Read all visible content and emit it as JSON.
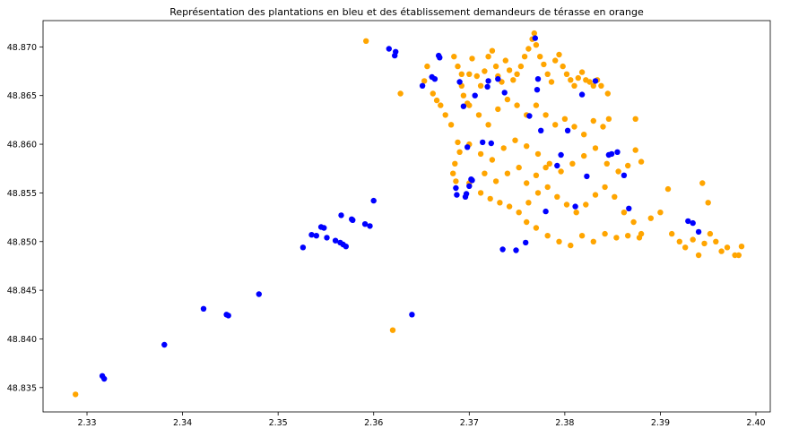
{
  "chart_data": {
    "type": "scatter",
    "title": "Représentation des plantations en bleu et des établissement demandeurs de térasse en orange",
    "xlabel": "",
    "ylabel": "",
    "xlim": [
      2.3254,
      2.4015
    ],
    "ylim": [
      48.8325,
      48.8727
    ],
    "xticks": [
      "2.33",
      "2.34",
      "2.35",
      "2.36",
      "2.37",
      "2.38",
      "2.39",
      "2.40"
    ],
    "yticks": [
      "48.835",
      "48.840",
      "48.845",
      "48.850",
      "48.855",
      "48.860",
      "48.865",
      "48.870"
    ],
    "grid": false,
    "colors": {
      "plantations": "#0000ff",
      "terrasses": "#ffa500"
    },
    "series": [
      {
        "color": "#0000ff",
        "points": [
          [
            2.3316,
            48.8362
          ],
          [
            2.3318,
            48.8359
          ],
          [
            2.3381,
            48.8394
          ],
          [
            2.3422,
            48.8431
          ],
          [
            2.3446,
            48.8425
          ],
          [
            2.3448,
            48.8424
          ],
          [
            2.348,
            48.8446
          ],
          [
            2.3526,
            48.8494
          ],
          [
            2.3535,
            48.8507
          ],
          [
            2.354,
            48.8506
          ],
          [
            2.3545,
            48.8515
          ],
          [
            2.3548,
            48.8514
          ],
          [
            2.3551,
            48.8504
          ],
          [
            2.356,
            48.8501
          ],
          [
            2.3565,
            48.8499
          ],
          [
            2.3568,
            48.8497
          ],
          [
            2.3571,
            48.8495
          ],
          [
            2.3566,
            48.8527
          ],
          [
            2.3577,
            48.8523
          ],
          [
            2.3578,
            48.8522
          ],
          [
            2.3591,
            48.8518
          ],
          [
            2.3596,
            48.8516
          ],
          [
            2.36,
            48.8542
          ],
          [
            2.3616,
            48.8698
          ],
          [
            2.3622,
            48.8691
          ],
          [
            2.3623,
            48.8695
          ],
          [
            2.364,
            48.8425
          ],
          [
            2.3651,
            48.866
          ],
          [
            2.3661,
            48.8669
          ],
          [
            2.3664,
            48.8667
          ],
          [
            2.3668,
            48.8691
          ],
          [
            2.3669,
            48.8689
          ],
          [
            2.3686,
            48.8555
          ],
          [
            2.3687,
            48.8548
          ],
          [
            2.369,
            48.8664
          ],
          [
            2.3694,
            48.8639
          ],
          [
            2.3696,
            48.8546
          ],
          [
            2.3697,
            48.8549
          ],
          [
            2.3698,
            48.8597
          ],
          [
            2.37,
            48.8557
          ],
          [
            2.3702,
            48.8564
          ],
          [
            2.3703,
            48.8563
          ],
          [
            2.3706,
            48.865
          ],
          [
            2.3714,
            48.8602
          ],
          [
            2.3719,
            48.8659
          ],
          [
            2.372,
            48.8665
          ],
          [
            2.3723,
            48.8601
          ],
          [
            2.373,
            48.8667
          ],
          [
            2.3735,
            48.8492
          ],
          [
            2.3737,
            48.8653
          ],
          [
            2.3749,
            48.8491
          ],
          [
            2.3759,
            48.8499
          ],
          [
            2.3763,
            48.8629
          ],
          [
            2.3769,
            48.8709
          ],
          [
            2.3771,
            48.8656
          ],
          [
            2.3772,
            48.8667
          ],
          [
            2.3775,
            48.8614
          ],
          [
            2.378,
            48.8531
          ],
          [
            2.3792,
            48.8578
          ],
          [
            2.3796,
            48.8589
          ],
          [
            2.3803,
            48.8614
          ],
          [
            2.3811,
            48.8536
          ],
          [
            2.3818,
            48.8651
          ],
          [
            2.3823,
            48.8567
          ],
          [
            2.3832,
            48.8665
          ],
          [
            2.3846,
            48.8589
          ],
          [
            2.3849,
            48.859
          ],
          [
            2.3855,
            48.8592
          ],
          [
            2.3862,
            48.8568
          ],
          [
            2.3867,
            48.8534
          ],
          [
            2.3929,
            48.8521
          ],
          [
            2.3934,
            48.8519
          ],
          [
            2.394,
            48.851
          ]
        ]
      },
      {
        "color": "#ffa500",
        "points": [
          [
            2.3288,
            48.8343
          ],
          [
            2.3592,
            48.8706
          ],
          [
            2.362,
            48.8409
          ],
          [
            2.3628,
            48.8652
          ],
          [
            2.3653,
            48.8665
          ],
          [
            2.3656,
            48.868
          ],
          [
            2.3662,
            48.8652
          ],
          [
            2.3666,
            48.8645
          ],
          [
            2.367,
            48.864
          ],
          [
            2.3675,
            48.863
          ],
          [
            2.3681,
            48.862
          ],
          [
            2.3684,
            48.869
          ],
          [
            2.3688,
            48.868
          ],
          [
            2.3692,
            48.8672
          ],
          [
            2.3694,
            48.865
          ],
          [
            2.3698,
            48.8642
          ],
          [
            2.3688,
            48.8602
          ],
          [
            2.369,
            48.8592
          ],
          [
            2.3685,
            48.858
          ],
          [
            2.3683,
            48.857
          ],
          [
            2.3686,
            48.8562
          ],
          [
            2.3692,
            48.866
          ],
          [
            2.37,
            48.8672
          ],
          [
            2.3703,
            48.8688
          ],
          [
            2.3708,
            48.867
          ],
          [
            2.3712,
            48.866
          ],
          [
            2.3716,
            48.8675
          ],
          [
            2.372,
            48.869
          ],
          [
            2.3724,
            48.8696
          ],
          [
            2.3728,
            48.868
          ],
          [
            2.373,
            48.867
          ],
          [
            2.3734,
            48.8664
          ],
          [
            2.3738,
            48.8686
          ],
          [
            2.3742,
            48.8676
          ],
          [
            2.3746,
            48.8666
          ],
          [
            2.375,
            48.8672
          ],
          [
            2.3754,
            48.868
          ],
          [
            2.3758,
            48.869
          ],
          [
            2.3762,
            48.8698
          ],
          [
            2.3766,
            48.8708
          ],
          [
            2.3768,
            48.8714
          ],
          [
            2.377,
            48.8702
          ],
          [
            2.3774,
            48.869
          ],
          [
            2.3778,
            48.8682
          ],
          [
            2.3782,
            48.8672
          ],
          [
            2.3786,
            48.8664
          ],
          [
            2.379,
            48.8686
          ],
          [
            2.3794,
            48.8692
          ],
          [
            2.3798,
            48.868
          ],
          [
            2.3802,
            48.8672
          ],
          [
            2.3806,
            48.8666
          ],
          [
            2.381,
            48.866
          ],
          [
            2.3814,
            48.8668
          ],
          [
            2.3818,
            48.8674
          ],
          [
            2.3822,
            48.8666
          ],
          [
            2.3826,
            48.8664
          ],
          [
            2.383,
            48.866
          ],
          [
            2.3834,
            48.8666
          ],
          [
            2.3838,
            48.866
          ],
          [
            2.3845,
            48.8652
          ],
          [
            2.37,
            48.864
          ],
          [
            2.371,
            48.863
          ],
          [
            2.372,
            48.862
          ],
          [
            2.373,
            48.8636
          ],
          [
            2.374,
            48.8646
          ],
          [
            2.375,
            48.864
          ],
          [
            2.376,
            48.863
          ],
          [
            2.377,
            48.864
          ],
          [
            2.378,
            48.863
          ],
          [
            2.379,
            48.862
          ],
          [
            2.38,
            48.8626
          ],
          [
            2.381,
            48.8618
          ],
          [
            2.382,
            48.861
          ],
          [
            2.383,
            48.8624
          ],
          [
            2.384,
            48.8618
          ],
          [
            2.3846,
            48.8626
          ],
          [
            2.37,
            48.86
          ],
          [
            2.3712,
            48.859
          ],
          [
            2.3724,
            48.8584
          ],
          [
            2.3736,
            48.8596
          ],
          [
            2.3748,
            48.8604
          ],
          [
            2.376,
            48.8598
          ],
          [
            2.3772,
            48.859
          ],
          [
            2.3784,
            48.858
          ],
          [
            2.3796,
            48.8572
          ],
          [
            2.3808,
            48.858
          ],
          [
            2.382,
            48.8588
          ],
          [
            2.3832,
            48.8596
          ],
          [
            2.3844,
            48.858
          ],
          [
            2.3856,
            48.8572
          ],
          [
            2.3866,
            48.8578
          ],
          [
            2.3874,
            48.8594
          ],
          [
            2.388,
            48.8582
          ],
          [
            2.3874,
            48.8626
          ],
          [
            2.37,
            48.856
          ],
          [
            2.3712,
            48.855
          ],
          [
            2.3722,
            48.8544
          ],
          [
            2.3732,
            48.854
          ],
          [
            2.3742,
            48.8536
          ],
          [
            2.3752,
            48.853
          ],
          [
            2.3762,
            48.854
          ],
          [
            2.3772,
            48.855
          ],
          [
            2.3782,
            48.8556
          ],
          [
            2.3792,
            48.8546
          ],
          [
            2.3802,
            48.8538
          ],
          [
            2.3812,
            48.853
          ],
          [
            2.3822,
            48.8538
          ],
          [
            2.3832,
            48.8548
          ],
          [
            2.3842,
            48.8556
          ],
          [
            2.3852,
            48.8546
          ],
          [
            2.3862,
            48.853
          ],
          [
            2.3872,
            48.852
          ],
          [
            2.388,
            48.8508
          ],
          [
            2.389,
            48.8524
          ],
          [
            2.39,
            48.853
          ],
          [
            2.3908,
            48.8554
          ],
          [
            2.3912,
            48.8508
          ],
          [
            2.392,
            48.85
          ],
          [
            2.3926,
            48.8494
          ],
          [
            2.3934,
            48.8502
          ],
          [
            2.394,
            48.8486
          ],
          [
            2.3946,
            48.8498
          ],
          [
            2.3952,
            48.8508
          ],
          [
            2.3958,
            48.85
          ],
          [
            2.3964,
            48.849
          ],
          [
            2.397,
            48.8494
          ],
          [
            2.3978,
            48.8486
          ],
          [
            2.3982,
            48.8486
          ],
          [
            2.3985,
            48.8495
          ],
          [
            2.3944,
            48.856
          ],
          [
            2.395,
            48.854
          ],
          [
            2.376,
            48.852
          ],
          [
            2.377,
            48.8514
          ],
          [
            2.3782,
            48.8506
          ],
          [
            2.3794,
            48.85
          ],
          [
            2.3806,
            48.8496
          ],
          [
            2.3818,
            48.8506
          ],
          [
            2.383,
            48.85
          ],
          [
            2.3842,
            48.8508
          ],
          [
            2.3854,
            48.8504
          ],
          [
            2.3866,
            48.8506
          ],
          [
            2.3878,
            48.8504
          ],
          [
            2.376,
            48.856
          ],
          [
            2.377,
            48.8568
          ],
          [
            2.378,
            48.8576
          ],
          [
            2.3752,
            48.8576
          ],
          [
            2.374,
            48.857
          ],
          [
            2.3728,
            48.8562
          ],
          [
            2.3716,
            48.857
          ]
        ]
      }
    ]
  }
}
